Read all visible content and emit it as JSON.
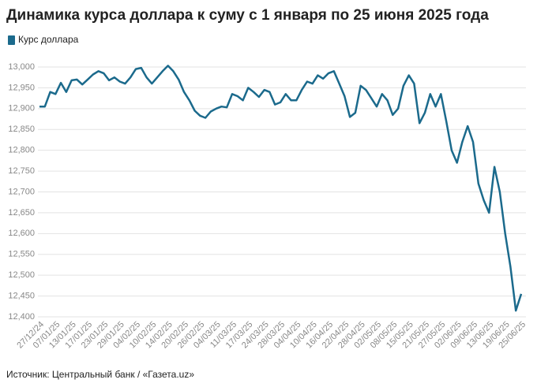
{
  "chart_data": {
    "type": "line",
    "title": "Динамика курса доллара к суму с 1 января по 25 июня 2025 года",
    "source": "Источник: Центральный банк / «Газета.uz»",
    "categories": [
      "27/12/24",
      null,
      null,
      "07/01/25",
      null,
      null,
      "13/01/25",
      null,
      null,
      "17/01/25",
      null,
      null,
      "23/01/25",
      null,
      null,
      "29/01/25",
      null,
      null,
      "04/02/25",
      null,
      null,
      "10/02/25",
      null,
      null,
      "14/02/25",
      null,
      null,
      "20/02/25",
      null,
      null,
      "26/02/25",
      null,
      null,
      "04/03/25",
      null,
      null,
      "11/03/25",
      null,
      null,
      "17/03/25",
      null,
      null,
      "24/03/25",
      null,
      null,
      "28/03/25",
      null,
      null,
      "04/04/25",
      null,
      null,
      "10/04/25",
      null,
      null,
      "16/04/25",
      null,
      null,
      "22/04/25",
      null,
      null,
      "28/04/25",
      null,
      null,
      "02/05/25",
      null,
      null,
      "08/05/25",
      null,
      null,
      "15/05/25",
      null,
      null,
      "21/05/25",
      null,
      null,
      "27/05/25",
      null,
      null,
      "02/06/25",
      null,
      null,
      "09/06/25",
      null,
      null,
      "13/06/25",
      null,
      null,
      "19/06/25",
      null,
      null,
      "25/06/25"
    ],
    "series": [
      {
        "name": "Курс доллара",
        "color": "#1b6a8c",
        "values": [
          12905,
          12905,
          12940,
          12935,
          12962,
          12940,
          12968,
          12970,
          12958,
          12970,
          12982,
          12990,
          12985,
          12968,
          12975,
          12965,
          12960,
          12975,
          12995,
          12998,
          12975,
          12960,
          12975,
          12990,
          13003,
          12990,
          12970,
          12940,
          12920,
          12895,
          12883,
          12878,
          12893,
          12900,
          12905,
          12903,
          12935,
          12930,
          12920,
          12950,
          12940,
          12928,
          12945,
          12940,
          12910,
          12915,
          12935,
          12920,
          12920,
          12945,
          12965,
          12960,
          12980,
          12972,
          12985,
          12990,
          12960,
          12930,
          12880,
          12890,
          12955,
          12945,
          12925,
          12905,
          12935,
          12920,
          12885,
          12900,
          12955,
          12980,
          12960,
          12865,
          12890,
          12935,
          12905,
          12935,
          12870,
          12800,
          12770,
          12820,
          12858,
          12820,
          12720,
          12680,
          12650,
          12760,
          12700,
          12600,
          12520,
          12415,
          12455
        ]
      }
    ],
    "ylim": [
      12400,
      13000
    ],
    "yticks": [
      {
        "value": 12400,
        "label": "12,400"
      },
      {
        "value": 12450,
        "label": "12,450"
      },
      {
        "value": 12500,
        "label": "12,500"
      },
      {
        "value": 12550,
        "label": "12,550"
      },
      {
        "value": 12600,
        "label": "12,600"
      },
      {
        "value": 12650,
        "label": "12,650"
      },
      {
        "value": 12700,
        "label": "12,700"
      },
      {
        "value": 12750,
        "label": "12,750"
      },
      {
        "value": 12800,
        "label": "12,800"
      },
      {
        "value": 12850,
        "label": "12,850"
      },
      {
        "value": 12900,
        "label": "12,900"
      },
      {
        "value": 12950,
        "label": "12,950"
      },
      {
        "value": 13000,
        "label": "13,000"
      }
    ],
    "grid": true
  }
}
